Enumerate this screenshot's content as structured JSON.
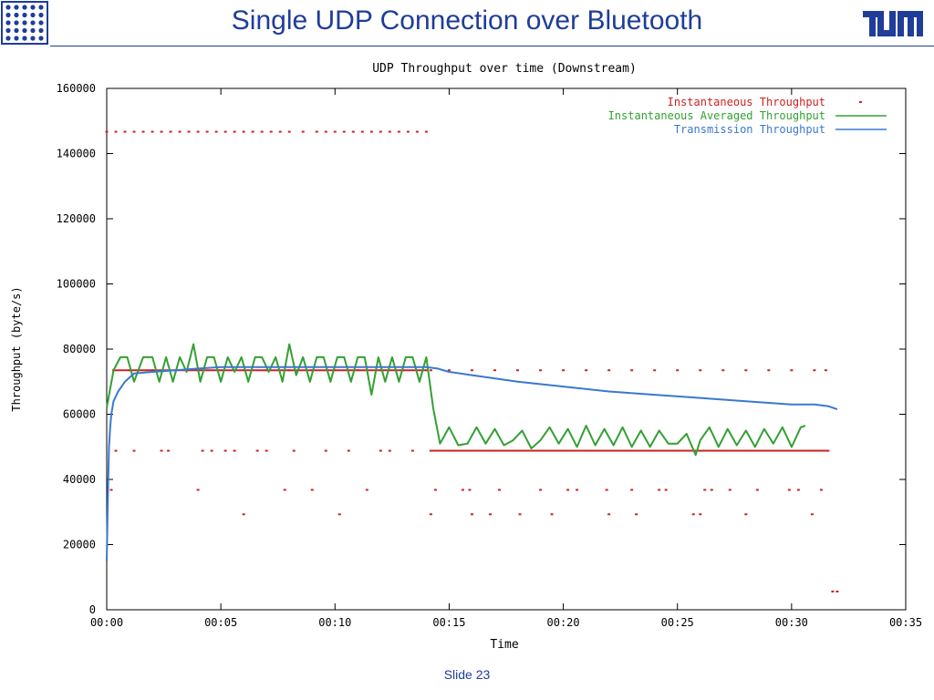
{
  "slide": {
    "title": "Single UDP Connection over Bluetooth",
    "footer": "Slide 23"
  },
  "colors": {
    "title": "#1f3d99",
    "instantaneous": "#cc2222",
    "averaged": "#33a033",
    "transmission": "#3a78d0"
  },
  "chart_data": {
    "type": "line",
    "title": "UDP Throughput over time (Downstream)",
    "xlabel": "Time",
    "ylabel": "Throughput (byte/s)",
    "xlim": [
      0,
      35
    ],
    "ylim": [
      0,
      160000
    ],
    "x_ticks": [
      {
        "v": 0,
        "label": "00:00"
      },
      {
        "v": 5,
        "label": "00:05"
      },
      {
        "v": 10,
        "label": "00:10"
      },
      {
        "v": 15,
        "label": "00:15"
      },
      {
        "v": 20,
        "label": "00:20"
      },
      {
        "v": 25,
        "label": "00:25"
      },
      {
        "v": 30,
        "label": "00:30"
      },
      {
        "v": 35,
        "label": "00:35"
      }
    ],
    "y_ticks": [
      {
        "v": 0,
        "label": "0"
      },
      {
        "v": 20000,
        "label": "20000"
      },
      {
        "v": 40000,
        "label": "40000"
      },
      {
        "v": 60000,
        "label": "60000"
      },
      {
        "v": 80000,
        "label": "80000"
      },
      {
        "v": 100000,
        "label": "100000"
      },
      {
        "v": 120000,
        "label": "120000"
      },
      {
        "v": 140000,
        "label": "140000"
      },
      {
        "v": 160000,
        "label": "160000"
      }
    ],
    "legend_position": "top-right",
    "series": [
      {
        "name": "Instantaneous Throughput",
        "style": "points",
        "color": "#cc2222",
        "bands": [
          {
            "y": 146700,
            "x": [
              0,
              0.4,
              0.8,
              1.2,
              1.6,
              2.0,
              2.4,
              2.8,
              3.2,
              3.6,
              4.0,
              4.4,
              4.8,
              5.2,
              5.6,
              6.0,
              6.4,
              6.8,
              7.2,
              7.6,
              8.0,
              8.6,
              9.2,
              9.6,
              10.0,
              10.4,
              10.8,
              11.2,
              11.6,
              12.0,
              12.4,
              12.8,
              13.2,
              13.6,
              14.0
            ]
          },
          {
            "y": 73500,
            "x": [
              0.3,
              1,
              2,
              3,
              4,
              5,
              6,
              7,
              8,
              9,
              10,
              11,
              12,
              13,
              14
            ]
          },
          {
            "y": 73500,
            "x": [
              14.2,
              15,
              16,
              17,
              18,
              19,
              20,
              21,
              22,
              23,
              24,
              25,
              26,
              27,
              28,
              29,
              30,
              31,
              31.5
            ]
          },
          {
            "y": 48800,
            "x": [
              0.4,
              1.2,
              2.4,
              2.7,
              4.2,
              4.6,
              5.2,
              5.6,
              6.6,
              7.0,
              8.2,
              9.6,
              10.6,
              12.0,
              12.4,
              13.4
            ]
          },
          {
            "y": 48800,
            "x": [
              14.2,
              15,
              16,
              17,
              18,
              19,
              20,
              21,
              22,
              23,
              24,
              25,
              26,
              27,
              28,
              29,
              30,
              31,
              31.6
            ]
          },
          {
            "y": 36800,
            "x": [
              0.2,
              4.0,
              7.8,
              9.0,
              11.4,
              14.4,
              15.6,
              15.9,
              17.2,
              19.0,
              20.2,
              20.6,
              21.9,
              23.0,
              24.2,
              24.5,
              26.2,
              26.5,
              27.3,
              28.5,
              29.9,
              30.3,
              31.3
            ]
          },
          {
            "y": 29300,
            "x": [
              6.0,
              10.2,
              14.2,
              16.0,
              16.8,
              18.1,
              19.5,
              22.0,
              23.2,
              25.7,
              26.0,
              28.0,
              30.9
            ]
          },
          {
            "y": 5600,
            "x": [
              31.8,
              32.0
            ]
          }
        ]
      },
      {
        "name": "Instantaneous Averaged Throughput",
        "style": "line",
        "color": "#33a033",
        "x": [
          0,
          0.3,
          0.6,
          0.9,
          1.2,
          1.6,
          2.0,
          2.3,
          2.6,
          2.9,
          3.2,
          3.5,
          3.8,
          4.1,
          4.4,
          4.7,
          5.0,
          5.3,
          5.6,
          5.9,
          6.2,
          6.5,
          6.8,
          7.1,
          7.4,
          7.7,
          8.0,
          8.3,
          8.6,
          8.9,
          9.2,
          9.5,
          9.8,
          10.1,
          10.4,
          10.7,
          11.0,
          11.3,
          11.6,
          11.9,
          12.2,
          12.5,
          12.8,
          13.1,
          13.4,
          13.7,
          14.0,
          14.3,
          14.6,
          15.0,
          15.4,
          15.8,
          16.2,
          16.6,
          17.0,
          17.4,
          17.8,
          18.2,
          18.6,
          19.0,
          19.4,
          19.8,
          20.2,
          20.6,
          21.0,
          21.4,
          21.8,
          22.2,
          22.6,
          23.0,
          23.4,
          23.8,
          24.2,
          24.6,
          25.0,
          25.4,
          25.8,
          26.0,
          26.4,
          26.8,
          27.2,
          27.6,
          28.0,
          28.4,
          28.8,
          29.2,
          29.6,
          30.0,
          30.4,
          30.6
        ],
        "y": [
          62000,
          73500,
          77500,
          77500,
          70000,
          77500,
          77500,
          70000,
          77500,
          70000,
          77500,
          73000,
          81500,
          70000,
          77500,
          77500,
          70000,
          77500,
          73000,
          77500,
          70000,
          77500,
          77500,
          73000,
          77500,
          70000,
          81500,
          72000,
          77500,
          70000,
          77500,
          77500,
          70000,
          77500,
          77500,
          70000,
          77500,
          77500,
          66000,
          77500,
          70000,
          77500,
          70000,
          77500,
          77500,
          70000,
          77500,
          62000,
          51000,
          56000,
          50500,
          51000,
          56000,
          51000,
          55500,
          50500,
          52000,
          55000,
          49500,
          52000,
          56000,
          51000,
          55500,
          50000,
          56500,
          50500,
          55500,
          50500,
          56000,
          50000,
          55000,
          50000,
          55000,
          51000,
          51000,
          54000,
          47500,
          52000,
          56000,
          50000,
          55500,
          50500,
          55000,
          50000,
          55500,
          51000,
          56000,
          50000,
          56000,
          56500
        ]
      },
      {
        "name": "Transmission Throughput",
        "style": "line",
        "color": "#3a78d0",
        "x": [
          0,
          0.05,
          0.1,
          0.15,
          0.2,
          0.3,
          0.5,
          0.8,
          1.2,
          2.0,
          3.0,
          4.0,
          5.0,
          6.0,
          8.0,
          10.0,
          12.0,
          14.0,
          14.5,
          15.0,
          16.0,
          18.0,
          20.0,
          22.0,
          24.0,
          26.0,
          28.0,
          29.0,
          30.0,
          31.0,
          31.6,
          32.0
        ],
        "y": [
          15000,
          35000,
          50000,
          56000,
          60000,
          64000,
          67000,
          70000,
          72500,
          73000,
          73500,
          74000,
          74500,
          74500,
          74500,
          74500,
          74500,
          74500,
          74000,
          73000,
          72000,
          70000,
          68500,
          67000,
          66000,
          65000,
          64000,
          63500,
          63000,
          63000,
          62500,
          61500
        ]
      }
    ]
  }
}
